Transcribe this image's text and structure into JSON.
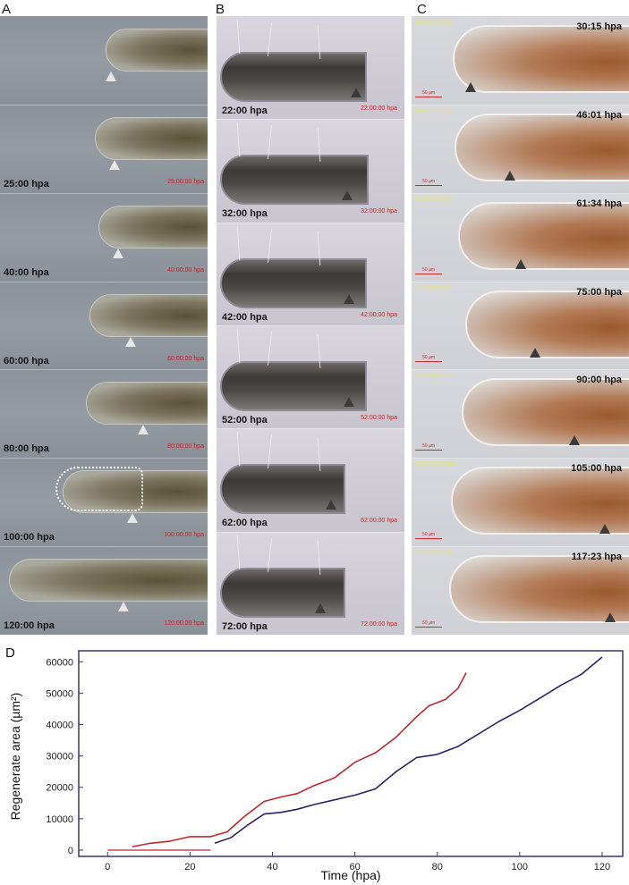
{
  "panels": {
    "A": {
      "letter": "A",
      "frames": [
        {
          "time": "",
          "stamp": ""
        },
        {
          "time": "25:00 hpa",
          "stamp": "25:00:00 hpa"
        },
        {
          "time": "40:00 hpa",
          "stamp": "40:00:00 hpa"
        },
        {
          "time": "60:00 hpa",
          "stamp": "60:00:00 hpa"
        },
        {
          "time": "80:00 hpa",
          "stamp": "80:00:00 hpa"
        },
        {
          "time": "100:00 hpa",
          "stamp": "100:00:00 hpa"
        },
        {
          "time": "120:00 hpa",
          "stamp": "120:00:00 hpa"
        }
      ]
    },
    "B": {
      "letter": "B",
      "frames": [
        {
          "time": "22:00 hpa",
          "stamp": "22:00:00 hpa"
        },
        {
          "time": "32:00 hpa",
          "stamp": "32:00:00 hpa"
        },
        {
          "time": "42:00 hpa",
          "stamp": "42:00:00 hpa"
        },
        {
          "time": "52:00 hpa",
          "stamp": "52:00:00 hpa"
        },
        {
          "time": "62:00 hpa",
          "stamp": "62:00:00 hpa"
        },
        {
          "time": "72:00 hpa",
          "stamp": "72:00:00 hpa"
        }
      ]
    },
    "C": {
      "letter": "C",
      "scalebar": "50 µm",
      "frames": [
        {
          "time": "30:15 hpa",
          "stamp": "30:15:24.446"
        },
        {
          "time": "46:01 hpa",
          "stamp": "46:01:27.109"
        },
        {
          "time": "61:34 hpa",
          "stamp": "61:34:27.907"
        },
        {
          "time": "75:00 hpa",
          "stamp": "75:00:54.425"
        },
        {
          "time": "90:00 hpa",
          "stamp": "90:00:40.097"
        },
        {
          "time": "105:00 hpa",
          "stamp": "105:01:05.080"
        },
        {
          "time": "117:23 hpa",
          "stamp": "117:23:04.797"
        }
      ]
    },
    "D": {
      "letter": "D"
    }
  },
  "chart_data": {
    "type": "line",
    "xlabel": "Time (hpa)",
    "ylabel": "Regenerate area (µm²)",
    "xlim": [
      -7,
      125
    ],
    "ylim": [
      -2000,
      63500
    ],
    "x_ticks": [
      0,
      20,
      40,
      60,
      80,
      100,
      120
    ],
    "y_ticks": [
      0,
      10000,
      20000,
      30000,
      40000,
      50000,
      60000
    ],
    "x_tick_labels": [
      "0",
      "20",
      "40",
      "60",
      "80",
      "100",
      "120"
    ],
    "y_tick_labels": [
      "0",
      "10000",
      "20000",
      "30000",
      "40000",
      "50000",
      "60000"
    ],
    "grid": false,
    "series": [
      {
        "color": "#c0272d",
        "points": [
          [
            6,
            1100
          ],
          [
            10,
            2100
          ],
          [
            15,
            2800
          ],
          [
            20,
            4300
          ],
          [
            25,
            4300
          ],
          [
            29,
            5800
          ],
          [
            33,
            10500
          ],
          [
            38,
            15500
          ],
          [
            42,
            16900
          ],
          [
            46,
            18000
          ],
          [
            50,
            20500
          ],
          [
            55,
            23000
          ],
          [
            60,
            28000
          ],
          [
            65,
            31000
          ],
          [
            70,
            36000
          ],
          [
            75,
            42500
          ],
          [
            78,
            46000
          ],
          [
            82,
            48000
          ],
          [
            85,
            51500
          ],
          [
            87,
            56500
          ]
        ]
      },
      {
        "color": "#2a2566",
        "points": [
          [
            26,
            2200
          ],
          [
            30,
            4000
          ],
          [
            34,
            8000
          ],
          [
            38,
            11500
          ],
          [
            42,
            12000
          ],
          [
            46,
            13000
          ],
          [
            50,
            14500
          ],
          [
            55,
            16000
          ],
          [
            60,
            17500
          ],
          [
            65,
            19500
          ],
          [
            70,
            25000
          ],
          [
            75,
            29500
          ],
          [
            80,
            30500
          ],
          [
            85,
            33000
          ],
          [
            90,
            37000
          ],
          [
            95,
            41000
          ],
          [
            100,
            44500
          ],
          [
            105,
            48500
          ],
          [
            110,
            52500
          ],
          [
            115,
            56000
          ],
          [
            120,
            61500
          ]
        ]
      }
    ]
  }
}
